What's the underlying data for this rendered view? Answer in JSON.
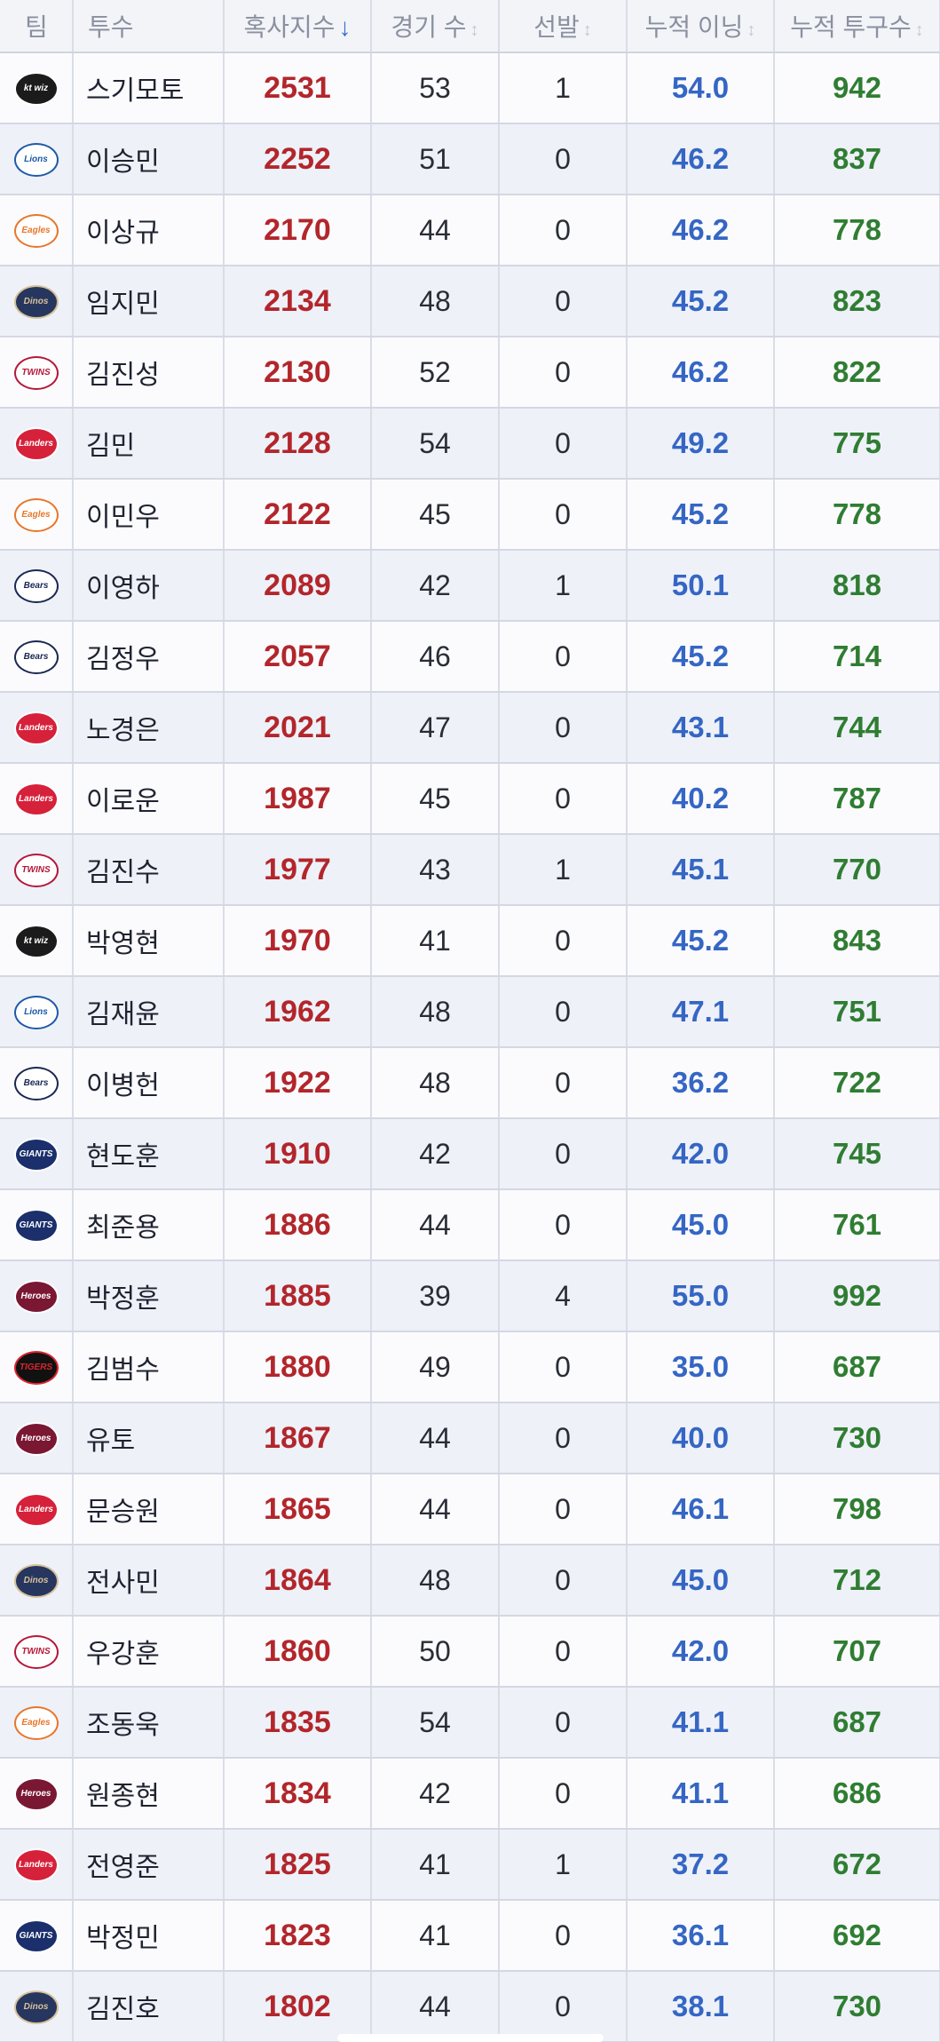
{
  "header": {
    "team": "팀",
    "pitcher": "투수",
    "idx": "혹사지수",
    "games": "경기 수",
    "starts": "선발",
    "innings": "누적 이닝",
    "pitches": "누적 투구수"
  },
  "colors": {
    "index": "#b2262b",
    "innings": "#3566c4",
    "pitches": "#2f7d32",
    "sort_active": "#3a6fd0"
  },
  "teams": {
    "kt": {
      "icon": "kt-wiz-logo-icon",
      "abbr": "kt wiz",
      "bg": "#1b1b1b",
      "fg": "#ffffff"
    },
    "lions": {
      "icon": "lions-logo-icon",
      "abbr": "Lions",
      "bg": "#ffffff",
      "fg": "#1d5aa8"
    },
    "eagles": {
      "icon": "eagles-logo-icon",
      "abbr": "Eagles",
      "bg": "#ffffff",
      "fg": "#e8762a"
    },
    "dinos": {
      "icon": "dinos-logo-icon",
      "abbr": "Dinos",
      "bg": "#27365e",
      "fg": "#d7c19a"
    },
    "twins": {
      "icon": "twins-logo-icon",
      "abbr": "TWINS",
      "bg": "#ffffff",
      "fg": "#b5173a"
    },
    "landers": {
      "icon": "landers-logo-icon",
      "abbr": "Landers",
      "bg": "#d6213a",
      "fg": "#ffffff"
    },
    "bears": {
      "icon": "bears-logo-icon",
      "abbr": "Bears",
      "bg": "#ffffff",
      "fg": "#1a2753"
    },
    "giants": {
      "icon": "giants-logo-icon",
      "abbr": "GIANTS",
      "bg": "#1a2f6b",
      "fg": "#ffffff"
    },
    "heroes": {
      "icon": "heroes-logo-icon",
      "abbr": "Heroes",
      "bg": "#7a1733",
      "fg": "#ffffff"
    },
    "tigers": {
      "icon": "tigers-logo-icon",
      "abbr": "TIGERS",
      "bg": "#111111",
      "fg": "#d8262f"
    }
  },
  "rows": [
    {
      "team": "kt",
      "pitcher": "스기모토",
      "idx": "2531",
      "games": "53",
      "starts": "1",
      "innings": "54.0",
      "pitches": "942"
    },
    {
      "team": "lions",
      "pitcher": "이승민",
      "idx": "2252",
      "games": "51",
      "starts": "0",
      "innings": "46.2",
      "pitches": "837"
    },
    {
      "team": "eagles",
      "pitcher": "이상규",
      "idx": "2170",
      "games": "44",
      "starts": "0",
      "innings": "46.2",
      "pitches": "778"
    },
    {
      "team": "dinos",
      "pitcher": "임지민",
      "idx": "2134",
      "games": "48",
      "starts": "0",
      "innings": "45.2",
      "pitches": "823"
    },
    {
      "team": "twins",
      "pitcher": "김진성",
      "idx": "2130",
      "games": "52",
      "starts": "0",
      "innings": "46.2",
      "pitches": "822"
    },
    {
      "team": "landers",
      "pitcher": "김민",
      "idx": "2128",
      "games": "54",
      "starts": "0",
      "innings": "49.2",
      "pitches": "775"
    },
    {
      "team": "eagles",
      "pitcher": "이민우",
      "idx": "2122",
      "games": "45",
      "starts": "0",
      "innings": "45.2",
      "pitches": "778"
    },
    {
      "team": "bears",
      "pitcher": "이영하",
      "idx": "2089",
      "games": "42",
      "starts": "1",
      "innings": "50.1",
      "pitches": "818"
    },
    {
      "team": "bears",
      "pitcher": "김정우",
      "idx": "2057",
      "games": "46",
      "starts": "0",
      "innings": "45.2",
      "pitches": "714"
    },
    {
      "team": "landers",
      "pitcher": "노경은",
      "idx": "2021",
      "games": "47",
      "starts": "0",
      "innings": "43.1",
      "pitches": "744"
    },
    {
      "team": "landers",
      "pitcher": "이로운",
      "idx": "1987",
      "games": "45",
      "starts": "0",
      "innings": "40.2",
      "pitches": "787"
    },
    {
      "team": "twins",
      "pitcher": "김진수",
      "idx": "1977",
      "games": "43",
      "starts": "1",
      "innings": "45.1",
      "pitches": "770"
    },
    {
      "team": "kt",
      "pitcher": "박영현",
      "idx": "1970",
      "games": "41",
      "starts": "0",
      "innings": "45.2",
      "pitches": "843"
    },
    {
      "team": "lions",
      "pitcher": "김재윤",
      "idx": "1962",
      "games": "48",
      "starts": "0",
      "innings": "47.1",
      "pitches": "751"
    },
    {
      "team": "bears",
      "pitcher": "이병헌",
      "idx": "1922",
      "games": "48",
      "starts": "0",
      "innings": "36.2",
      "pitches": "722"
    },
    {
      "team": "giants",
      "pitcher": "현도훈",
      "idx": "1910",
      "games": "42",
      "starts": "0",
      "innings": "42.0",
      "pitches": "745"
    },
    {
      "team": "giants",
      "pitcher": "최준용",
      "idx": "1886",
      "games": "44",
      "starts": "0",
      "innings": "45.0",
      "pitches": "761"
    },
    {
      "team": "heroes",
      "pitcher": "박정훈",
      "idx": "1885",
      "games": "39",
      "starts": "4",
      "innings": "55.0",
      "pitches": "992"
    },
    {
      "team": "tigers",
      "pitcher": "김범수",
      "idx": "1880",
      "games": "49",
      "starts": "0",
      "innings": "35.0",
      "pitches": "687"
    },
    {
      "team": "heroes",
      "pitcher": "유토",
      "idx": "1867",
      "games": "44",
      "starts": "0",
      "innings": "40.0",
      "pitches": "730"
    },
    {
      "team": "landers",
      "pitcher": "문승원",
      "idx": "1865",
      "games": "44",
      "starts": "0",
      "innings": "46.1",
      "pitches": "798"
    },
    {
      "team": "dinos",
      "pitcher": "전사민",
      "idx": "1864",
      "games": "48",
      "starts": "0",
      "innings": "45.0",
      "pitches": "712"
    },
    {
      "team": "twins",
      "pitcher": "우강훈",
      "idx": "1860",
      "games": "50",
      "starts": "0",
      "innings": "42.0",
      "pitches": "707"
    },
    {
      "team": "eagles",
      "pitcher": "조동욱",
      "idx": "1835",
      "games": "54",
      "starts": "0",
      "innings": "41.1",
      "pitches": "687"
    },
    {
      "team": "heroes",
      "pitcher": "원종현",
      "idx": "1834",
      "games": "42",
      "starts": "0",
      "innings": "41.1",
      "pitches": "686"
    },
    {
      "team": "landers",
      "pitcher": "전영준",
      "idx": "1825",
      "games": "41",
      "starts": "1",
      "innings": "37.2",
      "pitches": "672"
    },
    {
      "team": "giants",
      "pitcher": "박정민",
      "idx": "1823",
      "games": "41",
      "starts": "0",
      "innings": "36.1",
      "pitches": "692"
    },
    {
      "team": "dinos",
      "pitcher": "김진호",
      "idx": "1802",
      "games": "44",
      "starts": "0",
      "innings": "38.1",
      "pitches": "730"
    }
  ]
}
